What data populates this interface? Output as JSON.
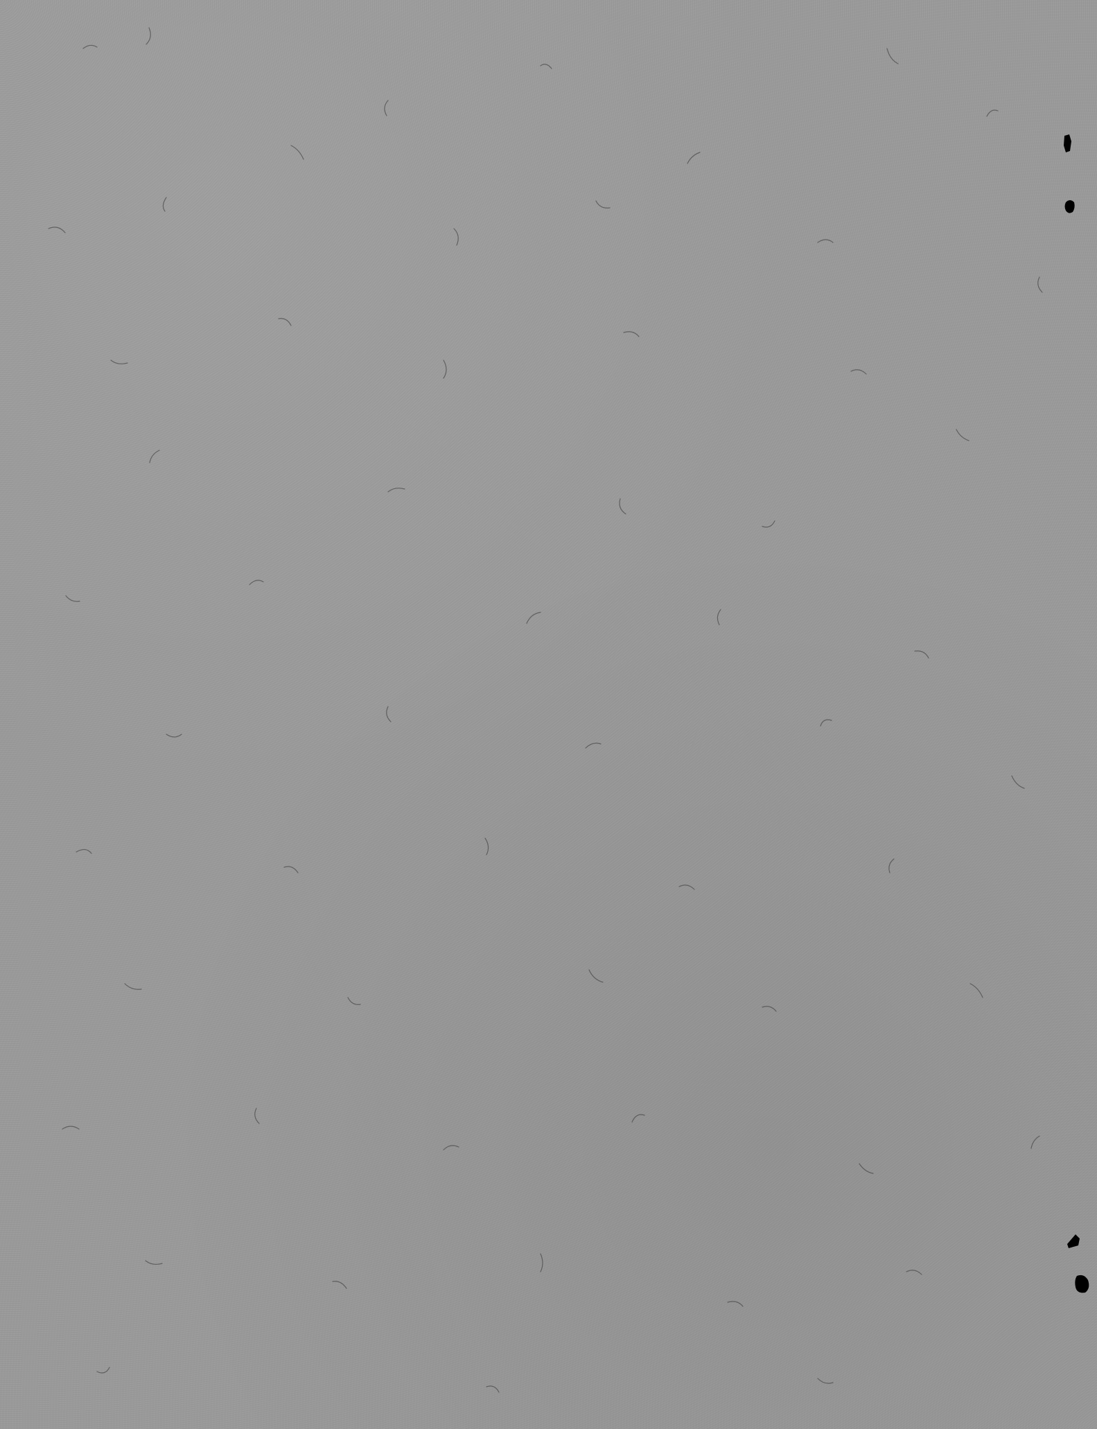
{
  "page": {
    "background_color": "#9a9a9a",
    "fiber_color": "#2f2f2f",
    "speck_color": "#000000"
  }
}
